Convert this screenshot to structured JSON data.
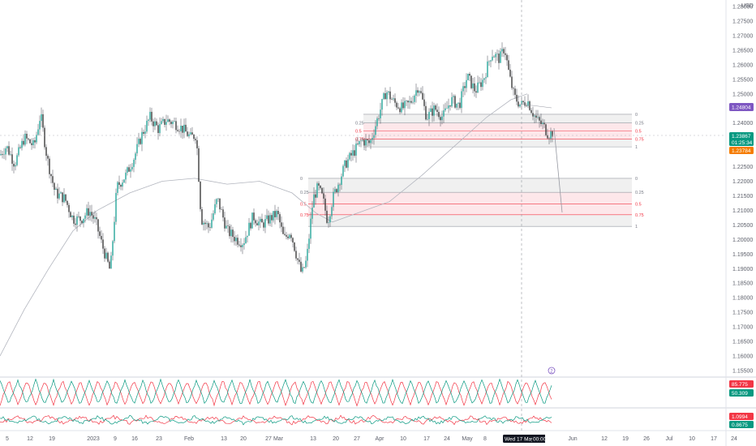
{
  "currency_label": "USD",
  "price_axis": {
    "labels": [
      "1.28000",
      "1.27500",
      "1.27000",
      "1.26500",
      "1.26000",
      "1.25500",
      "1.25000",
      "1.24500",
      "1.24000",
      "1.23500",
      "1.23000",
      "1.22500",
      "1.22000",
      "1.21500",
      "1.21000",
      "1.20500",
      "1.20000",
      "1.19500",
      "1.19000",
      "1.18500",
      "1.18000",
      "1.17500",
      "1.17000",
      "1.16500",
      "1.16000",
      "1.15500"
    ],
    "ylim": [
      1.155,
      1.28
    ]
  },
  "price_badges": {
    "level_purple": "1.24804",
    "last_price": "1.23867",
    "countdown": "01:25:34",
    "level_orange": "1.23784"
  },
  "colors": {
    "up_candle": "#26a69a",
    "down_candle": "#3b3b3b",
    "wick": "#434651",
    "ma_line": "#b2b5be",
    "fib_fill": "#f0f0f0",
    "fib_mid_fill": "#fde7ea",
    "red": "#f23645",
    "green": "#089981",
    "purple": "#7e57c2",
    "orange": "#f57c00"
  },
  "fib_upper": {
    "levels": [
      "0",
      "0.25",
      "0.5",
      "0.75",
      "1"
    ],
    "left_labels": [
      "0.25",
      "0.5",
      "0.75"
    ],
    "prices": [
      1.243,
      1.24,
      1.2372,
      1.2345,
      1.2318
    ]
  },
  "fib_lower": {
    "levels": [
      "0",
      "0.25",
      "0.5",
      "0.75",
      "1"
    ],
    "left_labels": [
      "0",
      "0.25",
      "0.5",
      "0.75"
    ],
    "prices": [
      1.221,
      1.2162,
      1.2122,
      1.2085,
      1.2045
    ]
  },
  "x_axis": {
    "labels": [
      "5",
      "12",
      "19",
      "2023",
      "9",
      "16",
      "23",
      "Feb",
      "13",
      "20",
      "27",
      "Mar",
      "13",
      "20",
      "27",
      "Apr",
      "10",
      "17",
      "24",
      "May",
      "8",
      "Wed 17 May '23",
      "00:00",
      "Jun",
      "12",
      "19",
      "26",
      "Jul",
      "10",
      "17",
      "24"
    ]
  },
  "indicator1": {
    "values": [
      "85.775",
      "50.309"
    ],
    "marker": "2"
  },
  "indicator2": {
    "values": [
      "1.0994",
      "0.8675"
    ]
  }
}
